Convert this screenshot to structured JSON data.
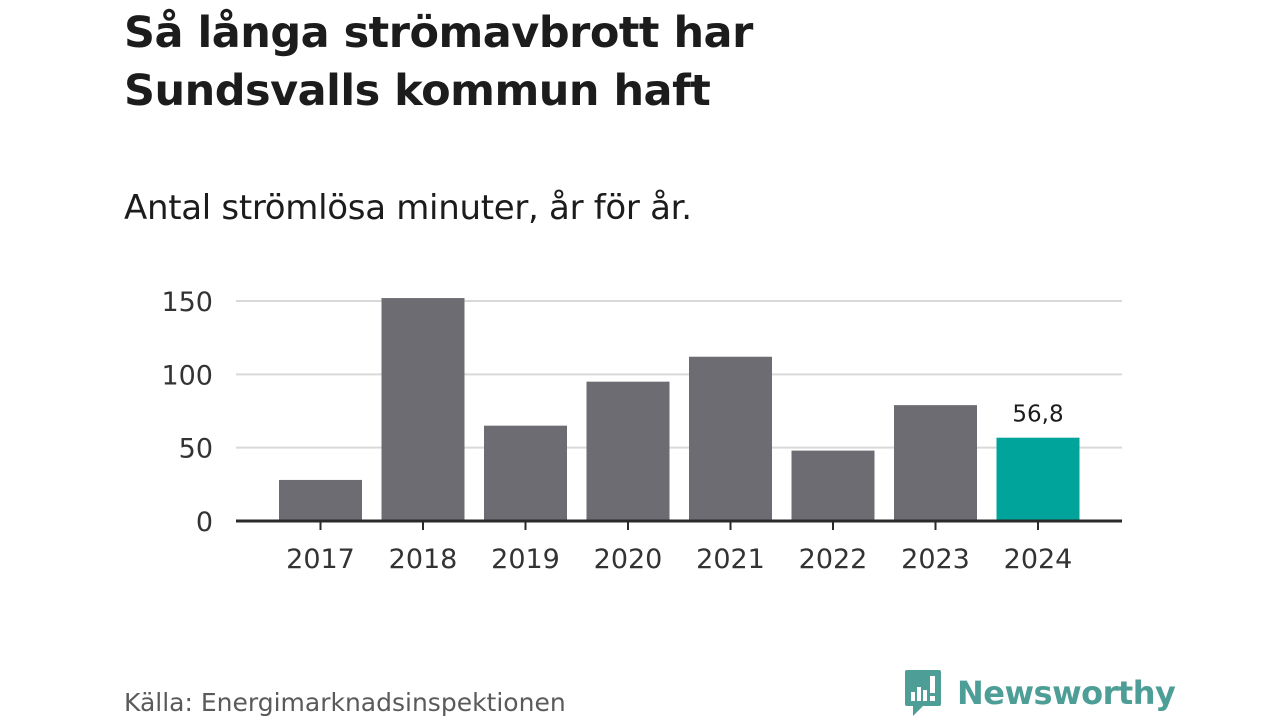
{
  "title": "Så långa strömavbrott har Sundsvalls kommun haft",
  "subtitle": "Antal strömlösa minuter, år för år.",
  "source": "Källa: Energimarknadsinspektionen",
  "brand": {
    "name": "Newsworthy",
    "icon": "newsworthy-logo-icon",
    "color": "#4e9e98"
  },
  "colors": {
    "bar": "#6d6c72",
    "highlight": "#00a49a",
    "grid": "#d9d9d9",
    "axis": "#2a2a2a"
  },
  "chart_data": {
    "type": "bar",
    "categories": [
      "2017",
      "2018",
      "2019",
      "2020",
      "2021",
      "2022",
      "2023",
      "2024"
    ],
    "values": [
      28,
      152,
      65,
      95,
      112,
      48,
      79,
      56.8
    ],
    "highlight_index": 7,
    "data_labels": [
      {
        "index": 7,
        "text": "56,8"
      }
    ],
    "yticks": [
      0,
      50,
      100,
      150
    ],
    "ytick_labels": [
      "0",
      "50",
      "100",
      "150"
    ],
    "ylim": [
      0,
      150
    ],
    "grid": true,
    "title": "Så långa strömavbrott har Sundsvalls kommun haft",
    "xlabel": "",
    "ylabel": ""
  }
}
